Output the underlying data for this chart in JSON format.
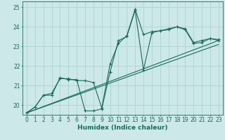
{
  "title": "",
  "xlabel": "Humidex (Indice chaleur)",
  "xlim": [
    -0.5,
    23.5
  ],
  "ylim": [
    19.5,
    25.3
  ],
  "yticks": [
    20,
    21,
    22,
    23,
    24,
    25
  ],
  "xticks": [
    0,
    1,
    2,
    3,
    4,
    5,
    6,
    7,
    8,
    9,
    10,
    11,
    12,
    13,
    14,
    15,
    16,
    17,
    18,
    19,
    20,
    21,
    22,
    23
  ],
  "bg_color": "#cce8e8",
  "grid_color": "#aacfcf",
  "line_color": "#1a6b5a",
  "series1_x": [
    0,
    1,
    2,
    3,
    4,
    5,
    6,
    7,
    8,
    9,
    10,
    11,
    12,
    13,
    14,
    15,
    16,
    17,
    18,
    19,
    20,
    21,
    22,
    23
  ],
  "series1_y": [
    19.6,
    19.9,
    20.5,
    20.5,
    21.4,
    21.3,
    21.3,
    19.7,
    19.7,
    19.8,
    21.7,
    23.3,
    23.5,
    24.85,
    21.8,
    23.7,
    23.8,
    23.85,
    24.0,
    23.85,
    23.15,
    23.2,
    23.4,
    23.3
  ],
  "series2_x": [
    0,
    1,
    2,
    3,
    4,
    5,
    6,
    7,
    8,
    9,
    10,
    11,
    12,
    13,
    14,
    15,
    16,
    17,
    18,
    19,
    20,
    21,
    22,
    23
  ],
  "series2_y": [
    19.6,
    19.9,
    20.5,
    20.6,
    21.35,
    21.35,
    21.25,
    21.25,
    21.15,
    19.85,
    22.1,
    23.15,
    23.55,
    24.9,
    23.6,
    23.75,
    23.8,
    23.9,
    24.0,
    23.9,
    23.2,
    23.3,
    23.4,
    23.35
  ],
  "trend1_x": [
    0,
    23
  ],
  "trend1_y": [
    19.6,
    23.1
  ],
  "trend2_x": [
    0,
    23
  ],
  "trend2_y": [
    19.6,
    23.3
  ]
}
